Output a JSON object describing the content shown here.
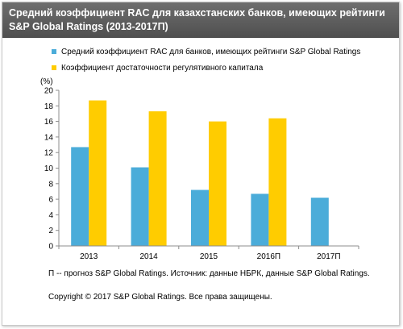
{
  "chart_data": {
    "type": "bar",
    "title": "Средний коэффициент RAC для казахстанских банков, имеющих рейтинги S&P Global Ratings (2013-2017П)",
    "ylabel": "(%)",
    "categories": [
      "2013",
      "2014",
      "2015",
      "2016П",
      "2017П"
    ],
    "series": [
      {
        "name": "Средний коэффициент RAC для банков, имеющих рейтинги S&P Global Ratings",
        "color": "#4bacd9",
        "values": [
          12.7,
          10.1,
          7.2,
          6.7,
          6.2
        ]
      },
      {
        "name": "Коэффициент достаточности регулятивного капитала",
        "color": "#ffcc00",
        "values": [
          18.7,
          17.3,
          16.0,
          16.4,
          null
        ]
      }
    ],
    "yticks": [
      0,
      2,
      4,
      6,
      8,
      10,
      12,
      14,
      16,
      18,
      20
    ],
    "ylim": [
      0,
      20
    ],
    "grid": false,
    "legend": "top"
  },
  "footnote": "П -- прогноз S&P Global Ratings. Источник: данные НБРК, данные S&P Global Ratings.",
  "copyright": "Copyright © 2017 S&P Global Ratings. Все права защищены."
}
